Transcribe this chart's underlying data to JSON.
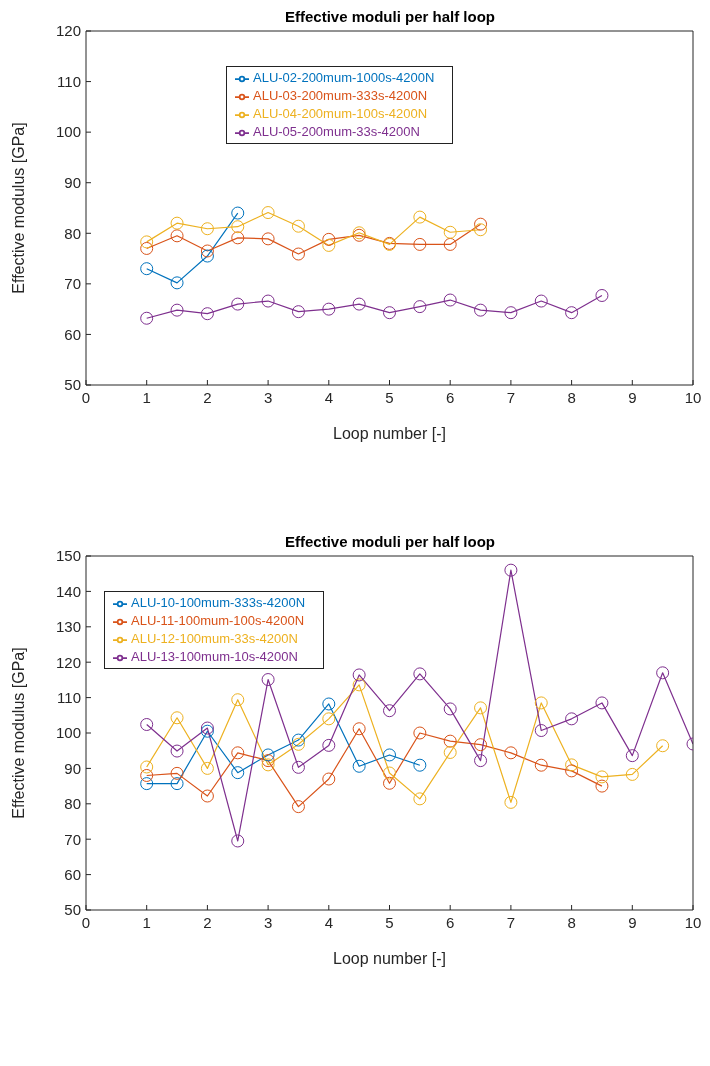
{
  "chart_data": [
    {
      "type": "line",
      "title": "Effective moduli per half loop",
      "xlabel": "Loop number [-]",
      "ylabel": "Effective modulus [GPa]",
      "xlim": [
        0,
        10
      ],
      "xticks": [
        0,
        1,
        2,
        3,
        4,
        5,
        6,
        7,
        8,
        9,
        10
      ],
      "ylim": [
        50,
        120
      ],
      "yticks": [
        50,
        60,
        70,
        80,
        90,
        100,
        110,
        120
      ],
      "grid": false,
      "legend": "top",
      "marker": "circle",
      "series": [
        {
          "name": "ALU-02-200mum-1000s-4200N",
          "color": "#0072bd",
          "x": [
            1,
            1.5,
            2,
            2.5
          ],
          "values": [
            73,
            70.2,
            75.5,
            84
          ]
        },
        {
          "name": "ALU-03-200mum-333s-4200N",
          "color": "#d95319",
          "x": [
            1,
            1.5,
            2,
            2.5,
            3,
            3.5,
            4,
            4.5,
            5,
            5.5,
            6,
            6.5
          ],
          "values": [
            77,
            79.5,
            76.5,
            79.1,
            78.9,
            75.9,
            78.8,
            79.6,
            78,
            77.8,
            77.8,
            81.8
          ]
        },
        {
          "name": "ALU-04-200mum-100s-4200N",
          "color": "#edb120",
          "x": [
            1,
            1.5,
            2,
            2.5,
            3,
            3.5,
            4,
            4.5,
            5,
            5.5,
            6,
            6.5
          ],
          "values": [
            78.3,
            82,
            80.9,
            81.3,
            84.1,
            81.4,
            77.6,
            80.1,
            77.8,
            83.2,
            80.2,
            80.7
          ]
        },
        {
          "name": "ALU-05-200mum-33s-4200N",
          "color": "#7e2f8e",
          "x": [
            1,
            1.5,
            2,
            2.5,
            3,
            3.5,
            4,
            4.5,
            5,
            5.5,
            6,
            6.5,
            7,
            7.5,
            8,
            8.5
          ],
          "values": [
            63.2,
            64.8,
            64.1,
            66,
            66.6,
            64.5,
            65,
            66,
            64.3,
            65.5,
            66.8,
            64.8,
            64.3,
            66.6,
            64.3,
            67.7
          ]
        }
      ]
    },
    {
      "type": "line",
      "title": "Effective moduli per half loop",
      "xlabel": "Loop number [-]",
      "ylabel": "Effective modulus [GPa]",
      "xlim": [
        0,
        10
      ],
      "xticks": [
        0,
        1,
        2,
        3,
        4,
        5,
        6,
        7,
        8,
        9,
        10
      ],
      "ylim": [
        50,
        150
      ],
      "yticks": [
        50,
        60,
        70,
        80,
        90,
        100,
        110,
        120,
        130,
        140,
        150
      ],
      "grid": false,
      "legend": "top left",
      "marker": "circle",
      "series": [
        {
          "name": "ALU-10-100mum-333s-4200N",
          "color": "#0072bd",
          "x": [
            1,
            1.5,
            2,
            2.5,
            3,
            3.5,
            4,
            4.5,
            5,
            5.5
          ],
          "values": [
            85.7,
            85.7,
            100.5,
            88.8,
            93.8,
            98,
            108.2,
            90.6,
            93.8,
            90.9
          ]
        },
        {
          "name": "ALU-11-100mum-100s-4200N",
          "color": "#d95319",
          "x": [
            1,
            1.5,
            2,
            2.5,
            3,
            3.5,
            4,
            4.5,
            5,
            5.5,
            6,
            6.5,
            7,
            7.5,
            8,
            8.5
          ],
          "values": [
            88,
            88.6,
            82.2,
            94.4,
            92.2,
            79.2,
            87,
            101.2,
            85.8,
            100,
            97.7,
            96.7,
            94.4,
            90.9,
            89.3,
            85
          ]
        },
        {
          "name": "ALU-12-100mum-33s-4200N",
          "color": "#edb120",
          "x": [
            1,
            1.5,
            2,
            2.5,
            3,
            3.5,
            4,
            4.5,
            5,
            5.5,
            6,
            6.5,
            7,
            7.5,
            8,
            8.5,
            9,
            9.5
          ],
          "values": [
            90.4,
            104.3,
            90,
            109.4,
            91,
            96.8,
            104,
            113.6,
            88.7,
            81.4,
            94.5,
            107.1,
            80.4,
            108.5,
            91,
            87.6,
            88.3,
            96.4
          ]
        },
        {
          "name": "ALU-13-100mum-10s-4200N",
          "color": "#7e2f8e",
          "x": [
            1,
            1.5,
            2,
            2.5,
            3,
            3.5,
            4,
            4.5,
            5,
            5.5,
            6,
            6.5,
            7,
            7.5,
            8,
            8.5,
            9,
            9.5,
            10
          ],
          "values": [
            102.4,
            94.9,
            101.4,
            69.5,
            115.1,
            90.3,
            96.5,
            116.4,
            106.3,
            116.7,
            106.8,
            92.2,
            146,
            100.7,
            104,
            108.5,
            93.6,
            117,
            96.9
          ]
        }
      ]
    }
  ]
}
